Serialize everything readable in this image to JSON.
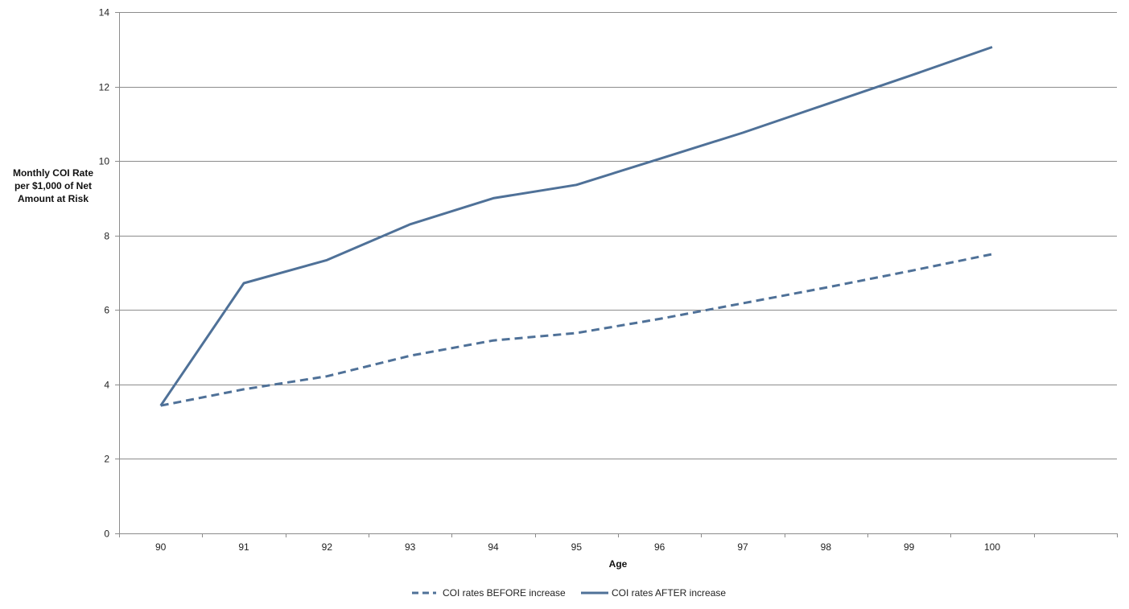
{
  "chart_data": {
    "type": "line",
    "title": "",
    "xlabel": "Age",
    "ylabel_lines": [
      "Monthly COI Rate",
      "per $1,000 of Net",
      "Amount at Risk"
    ],
    "x": [
      90,
      91,
      92,
      93,
      94,
      95,
      96,
      97,
      98,
      99,
      100
    ],
    "xlim": [
      89.5,
      101.5
    ],
    "ylim": [
      0,
      14
    ],
    "yticks": [
      0,
      2,
      4,
      6,
      8,
      10,
      12,
      14
    ],
    "grid": true,
    "legend_position": "bottom",
    "line_color": "#4F7198",
    "grid_color": "#8C8C8C",
    "series": [
      {
        "name": "COI rates BEFORE increase",
        "style": "dashed",
        "values": [
          3.43,
          3.87,
          4.22,
          4.77,
          5.18,
          5.38,
          5.76,
          6.18,
          6.6,
          7.04,
          7.5
        ]
      },
      {
        "name": "COI rates AFTER increase",
        "style": "solid",
        "values": [
          3.43,
          6.72,
          7.34,
          8.3,
          9.0,
          9.36,
          10.06,
          10.76,
          11.52,
          12.28,
          13.06
        ]
      }
    ]
  }
}
